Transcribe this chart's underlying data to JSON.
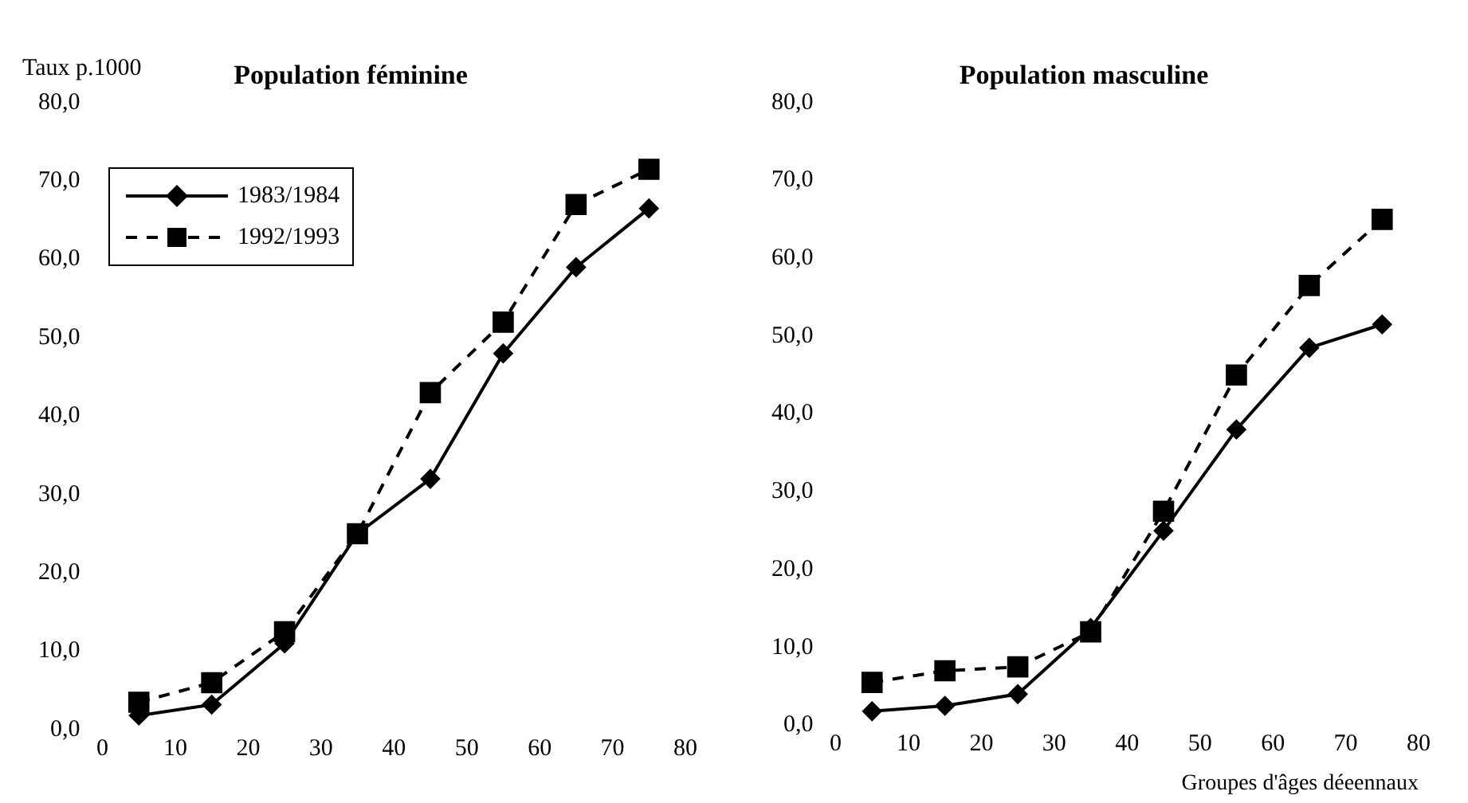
{
  "chart_data": [
    {
      "type": "line",
      "title": "Population féminine",
      "ylabel": "Taux p.1000",
      "x": [
        5,
        15,
        25,
        35,
        45,
        55,
        65,
        75
      ],
      "series": [
        {
          "name": "1983/1984",
          "color": "#000000",
          "marker": "diamond",
          "line_style": "solid",
          "values": [
            1.8,
            3.2,
            11,
            25,
            32,
            48,
            59,
            66.5
          ]
        },
        {
          "name": "1992/1993",
          "color": "#000000",
          "marker": "square",
          "line_style": "dashed",
          "values": [
            3.5,
            6,
            12.5,
            25,
            43,
            52,
            67,
            71.5
          ]
        }
      ],
      "xlim": [
        0,
        80
      ],
      "xticks": [
        0,
        10,
        20,
        30,
        40,
        50,
        60,
        70,
        80
      ],
      "ylim": [
        0,
        80
      ],
      "yticks": [
        {
          "value": 0,
          "label": "0,0"
        },
        {
          "value": 10,
          "label": "10,0"
        },
        {
          "value": 20,
          "label": "20,0"
        },
        {
          "value": 30,
          "label": "30,0"
        },
        {
          "value": 40,
          "label": "40,0"
        },
        {
          "value": 50,
          "label": "50,0"
        },
        {
          "value": 60,
          "label": "60,0"
        },
        {
          "value": 70,
          "label": "70,0"
        },
        {
          "value": 80,
          "label": "80,0"
        }
      ],
      "grid": false,
      "legend": "top left"
    },
    {
      "type": "line",
      "title": "Population masculine",
      "xlabel": "Groupes d'âges déeennaux",
      "x": [
        5,
        15,
        25,
        35,
        45,
        55,
        65,
        75
      ],
      "series": [
        {
          "color": "#000000",
          "marker": "diamond",
          "line_style": "solid",
          "values": [
            1.8,
            2.5,
            4,
            12.5,
            25,
            38,
            48.5,
            51.5
          ]
        },
        {
          "color": "#000000",
          "marker": "square",
          "line_style": "dashed",
          "values": [
            5.5,
            7,
            7.5,
            12,
            27.5,
            45,
            56.5,
            65
          ]
        }
      ],
      "xlim": [
        0,
        80
      ],
      "xticks": [
        0,
        10,
        20,
        30,
        40,
        50,
        60,
        70,
        80
      ],
      "ylim": [
        0,
        80
      ],
      "yticks": [
        {
          "value": 0,
          "label": "0,0"
        },
        {
          "value": 10,
          "label": "10,0"
        },
        {
          "value": 20,
          "label": "20,0"
        },
        {
          "value": 30,
          "label": "30,0"
        },
        {
          "value": 40,
          "label": "40,0"
        },
        {
          "value": 50,
          "label": "50,0"
        },
        {
          "value": 60,
          "label": "60,0"
        },
        {
          "value": 70,
          "label": "70,0"
        },
        {
          "value": 80,
          "label": "80,0"
        }
      ],
      "grid": false
    }
  ]
}
